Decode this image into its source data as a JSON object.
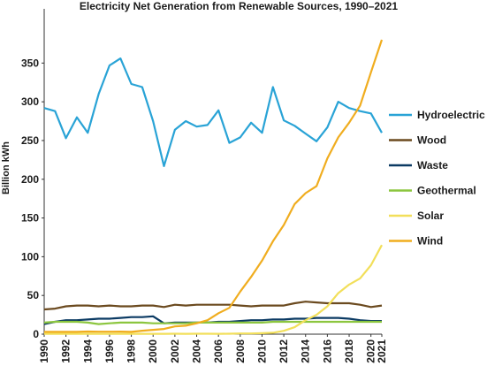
{
  "chart_data": {
    "type": "line",
    "title": "Electricity Net Generation from Renewable Sources, 1990–2021",
    "y_label": "Billion kWh",
    "x": [
      1990,
      1991,
      1992,
      1993,
      1994,
      1995,
      1996,
      1997,
      1998,
      1999,
      2000,
      2001,
      2002,
      2003,
      2004,
      2005,
      2006,
      2007,
      2008,
      2009,
      2010,
      2011,
      2012,
      2013,
      2014,
      2015,
      2016,
      2017,
      2018,
      2019,
      2020,
      2021
    ],
    "xlim": [
      1990,
      2021
    ],
    "xticks": [
      1990,
      1992,
      1994,
      1996,
      1998,
      2000,
      2002,
      2004,
      2006,
      2008,
      2010,
      2012,
      2014,
      2016,
      2018,
      2020,
      2021
    ],
    "ylim": [
      0,
      420
    ],
    "yticks": [
      0,
      50,
      100,
      150,
      200,
      250,
      300,
      350
    ],
    "grid": false,
    "legend": "right",
    "series": [
      {
        "name": "Hydroelectric",
        "color": "#29a3d6",
        "values": [
          292,
          288,
          253,
          280,
          260,
          310,
          347,
          356,
          323,
          319,
          275,
          217,
          264,
          275,
          268,
          270,
          289,
          247,
          254,
          273,
          260,
          319,
          276,
          269,
          259,
          249,
          267,
          300,
          292,
          288,
          285,
          260
        ]
      },
      {
        "name": "Wood",
        "color": "#6b4a1f",
        "values": [
          32,
          33,
          36,
          37,
          37,
          36,
          37,
          36,
          36,
          37,
          37,
          35,
          38,
          37,
          38,
          38,
          38,
          38,
          37,
          36,
          37,
          37,
          37,
          40,
          42,
          41,
          40,
          40,
          40,
          38,
          35,
          37
        ]
      },
      {
        "name": "Waste",
        "color": "#0b3a63",
        "values": [
          13,
          16,
          18,
          18,
          19,
          20,
          20,
          21,
          22,
          22,
          23,
          14,
          15,
          15,
          15,
          15,
          16,
          16,
          17,
          18,
          18,
          19,
          19,
          20,
          20,
          21,
          21,
          21,
          20,
          18,
          17,
          17
        ]
      },
      {
        "name": "Geothermal",
        "color": "#8cc63f",
        "values": [
          15,
          16,
          16,
          16,
          15,
          13,
          14,
          15,
          15,
          15,
          14,
          14,
          14,
          14,
          15,
          15,
          15,
          15,
          15,
          15,
          15,
          16,
          16,
          16,
          16,
          16,
          16,
          16,
          16,
          16,
          16,
          16
        ]
      },
      {
        "name": "Solar",
        "color": "#f2df5a",
        "values": [
          0.4,
          0.5,
          0.5,
          0.5,
          0.5,
          0.5,
          0.5,
          0.5,
          0.5,
          0.5,
          0.5,
          0.5,
          0.6,
          0.5,
          0.6,
          0.6,
          0.5,
          0.6,
          0.9,
          0.9,
          1.2,
          1.8,
          4.3,
          9,
          18,
          25,
          36,
          53,
          64,
          72,
          89,
          115
        ]
      },
      {
        "name": "Wind",
        "color": "#f0ad1f",
        "values": [
          3,
          3,
          3,
          3,
          3.4,
          3.2,
          3.2,
          3.3,
          3,
          4.5,
          5.6,
          6.7,
          10,
          11,
          14,
          18,
          27,
          34,
          55,
          74,
          95,
          120,
          141,
          168,
          182,
          191,
          227,
          254,
          273,
          295,
          338,
          380
        ]
      }
    ]
  }
}
